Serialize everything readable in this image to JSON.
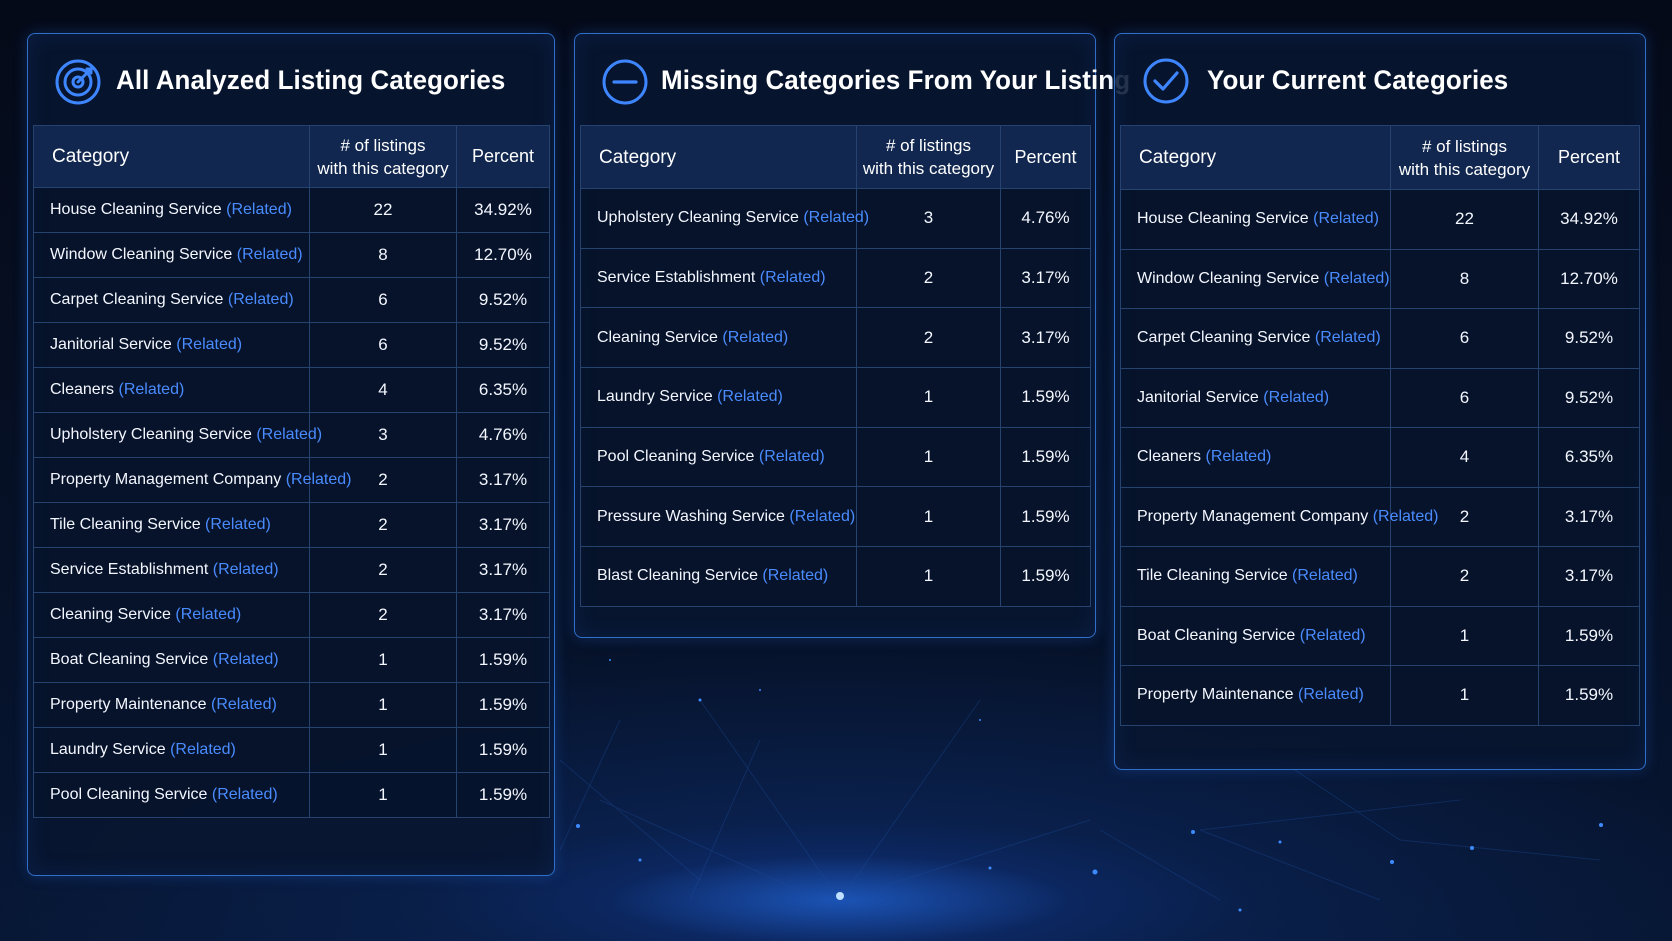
{
  "header_labels": {
    "category": "Category",
    "count_line1": "# of listings",
    "count_line2": "with this category",
    "percent": "Percent"
  },
  "related_label": "(Related)",
  "colors": {
    "background": "#061127",
    "panel_border": "#2f6fc9",
    "accent": "#3e86ff",
    "related_link": "#4a8cff",
    "text": "#ffffff"
  },
  "panels": [
    {
      "title": "All Analyzed Listing Categories",
      "icon": "target-icon",
      "rows": [
        {
          "name": "House Cleaning Service",
          "count": "22",
          "percent": "34.92%"
        },
        {
          "name": "Window Cleaning Service",
          "count": "8",
          "percent": "12.70%"
        },
        {
          "name": "Carpet Cleaning Service",
          "count": "6",
          "percent": "9.52%"
        },
        {
          "name": "Janitorial Service",
          "count": "6",
          "percent": "9.52%"
        },
        {
          "name": "Cleaners",
          "count": "4",
          "percent": "6.35%"
        },
        {
          "name": "Upholstery Cleaning Service",
          "count": "3",
          "percent": "4.76%"
        },
        {
          "name": "Property Management Company",
          "count": "2",
          "percent": "3.17%"
        },
        {
          "name": "Tile Cleaning Service",
          "count": "2",
          "percent": "3.17%"
        },
        {
          "name": "Service Establishment",
          "count": "2",
          "percent": "3.17%"
        },
        {
          "name": "Cleaning Service",
          "count": "2",
          "percent": "3.17%"
        },
        {
          "name": "Boat Cleaning Service",
          "count": "1",
          "percent": "1.59%"
        },
        {
          "name": "Property Maintenance",
          "count": "1",
          "percent": "1.59%"
        },
        {
          "name": "Laundry Service",
          "count": "1",
          "percent": "1.59%"
        },
        {
          "name": "Pool Cleaning Service",
          "count": "1",
          "percent": "1.59%"
        }
      ]
    },
    {
      "title": "Missing Categories From Your Listing",
      "icon": "minus-circle-icon",
      "rows": [
        {
          "name": "Upholstery Cleaning Service",
          "count": "3",
          "percent": "4.76%"
        },
        {
          "name": "Service Establishment",
          "count": "2",
          "percent": "3.17%"
        },
        {
          "name": "Cleaning Service",
          "count": "2",
          "percent": "3.17%"
        },
        {
          "name": "Laundry Service",
          "count": "1",
          "percent": "1.59%"
        },
        {
          "name": "Pool Cleaning Service",
          "count": "1",
          "percent": "1.59%"
        },
        {
          "name": "Pressure Washing Service",
          "count": "1",
          "percent": "1.59%"
        },
        {
          "name": "Blast Cleaning Service",
          "count": "1",
          "percent": "1.59%"
        }
      ]
    },
    {
      "title": "Your Current Categories",
      "icon": "check-circle-icon",
      "rows": [
        {
          "name": "House Cleaning Service",
          "count": "22",
          "percent": "34.92%"
        },
        {
          "name": "Window Cleaning Service",
          "count": "8",
          "percent": "12.70%"
        },
        {
          "name": "Carpet Cleaning Service",
          "count": "6",
          "percent": "9.52%"
        },
        {
          "name": "Janitorial Service",
          "count": "6",
          "percent": "9.52%"
        },
        {
          "name": "Cleaners",
          "count": "4",
          "percent": "6.35%"
        },
        {
          "name": "Property Management Company",
          "count": "2",
          "percent": "3.17%"
        },
        {
          "name": "Tile Cleaning Service",
          "count": "2",
          "percent": "3.17%"
        },
        {
          "name": "Boat Cleaning Service",
          "count": "1",
          "percent": "1.59%"
        },
        {
          "name": "Property Maintenance",
          "count": "1",
          "percent": "1.59%"
        }
      ]
    }
  ]
}
